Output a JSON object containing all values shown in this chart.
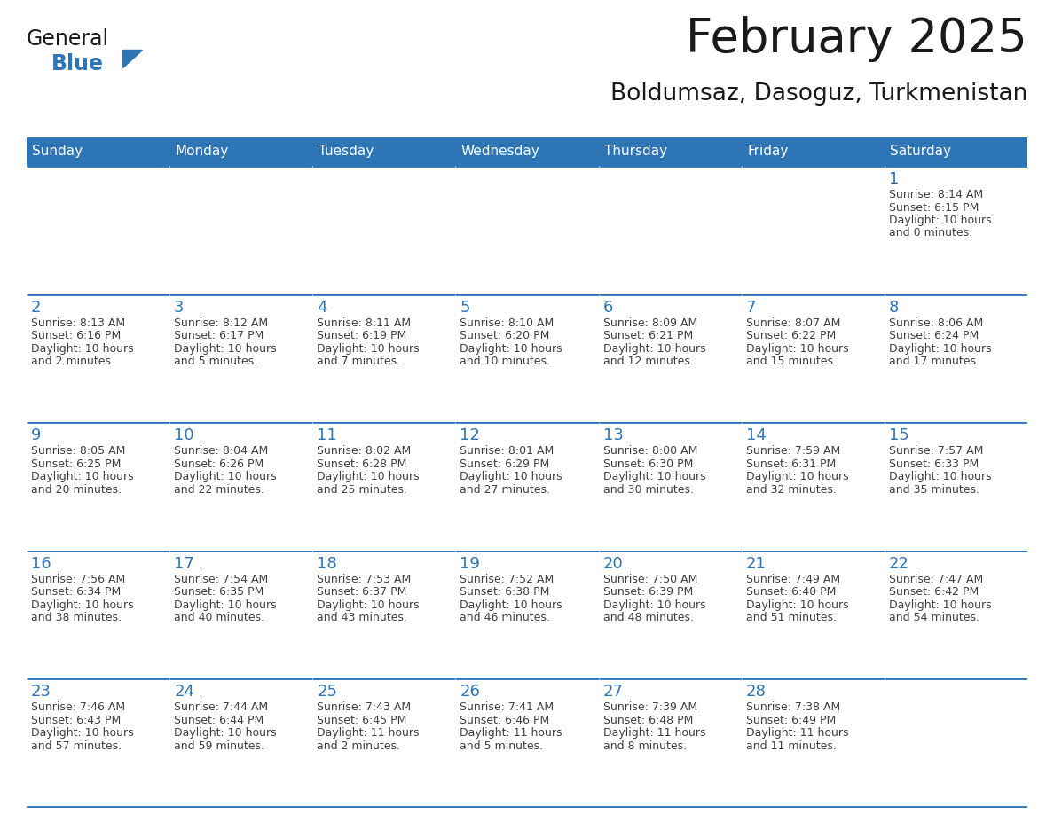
{
  "title": "February 2025",
  "subtitle": "Boldumsaz, Dasoguz, Turkmenistan",
  "header_bg": "#2E75B6",
  "header_text_color": "#FFFFFF",
  "cell_bg": "#FFFFFF",
  "border_color": "#2E75B6",
  "light_border_color": "#BDD7EE",
  "day_headers": [
    "Sunday",
    "Monday",
    "Tuesday",
    "Wednesday",
    "Thursday",
    "Friday",
    "Saturday"
  ],
  "title_color": "#1A1A1A",
  "subtitle_color": "#1A1A1A",
  "logo_general_color": "#1A1A1A",
  "logo_blue_color": "#2E75B6",
  "day_number_color": "#2E75B6",
  "info_text_color": "#404040",
  "weeks": [
    [
      {
        "day": "",
        "info": ""
      },
      {
        "day": "",
        "info": ""
      },
      {
        "day": "",
        "info": ""
      },
      {
        "day": "",
        "info": ""
      },
      {
        "day": "",
        "info": ""
      },
      {
        "day": "",
        "info": ""
      },
      {
        "day": "1",
        "info": "Sunrise: 8:14 AM\nSunset: 6:15 PM\nDaylight: 10 hours\nand 0 minutes."
      }
    ],
    [
      {
        "day": "2",
        "info": "Sunrise: 8:13 AM\nSunset: 6:16 PM\nDaylight: 10 hours\nand 2 minutes."
      },
      {
        "day": "3",
        "info": "Sunrise: 8:12 AM\nSunset: 6:17 PM\nDaylight: 10 hours\nand 5 minutes."
      },
      {
        "day": "4",
        "info": "Sunrise: 8:11 AM\nSunset: 6:19 PM\nDaylight: 10 hours\nand 7 minutes."
      },
      {
        "day": "5",
        "info": "Sunrise: 8:10 AM\nSunset: 6:20 PM\nDaylight: 10 hours\nand 10 minutes."
      },
      {
        "day": "6",
        "info": "Sunrise: 8:09 AM\nSunset: 6:21 PM\nDaylight: 10 hours\nand 12 minutes."
      },
      {
        "day": "7",
        "info": "Sunrise: 8:07 AM\nSunset: 6:22 PM\nDaylight: 10 hours\nand 15 minutes."
      },
      {
        "day": "8",
        "info": "Sunrise: 8:06 AM\nSunset: 6:24 PM\nDaylight: 10 hours\nand 17 minutes."
      }
    ],
    [
      {
        "day": "9",
        "info": "Sunrise: 8:05 AM\nSunset: 6:25 PM\nDaylight: 10 hours\nand 20 minutes."
      },
      {
        "day": "10",
        "info": "Sunrise: 8:04 AM\nSunset: 6:26 PM\nDaylight: 10 hours\nand 22 minutes."
      },
      {
        "day": "11",
        "info": "Sunrise: 8:02 AM\nSunset: 6:28 PM\nDaylight: 10 hours\nand 25 minutes."
      },
      {
        "day": "12",
        "info": "Sunrise: 8:01 AM\nSunset: 6:29 PM\nDaylight: 10 hours\nand 27 minutes."
      },
      {
        "day": "13",
        "info": "Sunrise: 8:00 AM\nSunset: 6:30 PM\nDaylight: 10 hours\nand 30 minutes."
      },
      {
        "day": "14",
        "info": "Sunrise: 7:59 AM\nSunset: 6:31 PM\nDaylight: 10 hours\nand 32 minutes."
      },
      {
        "day": "15",
        "info": "Sunrise: 7:57 AM\nSunset: 6:33 PM\nDaylight: 10 hours\nand 35 minutes."
      }
    ],
    [
      {
        "day": "16",
        "info": "Sunrise: 7:56 AM\nSunset: 6:34 PM\nDaylight: 10 hours\nand 38 minutes."
      },
      {
        "day": "17",
        "info": "Sunrise: 7:54 AM\nSunset: 6:35 PM\nDaylight: 10 hours\nand 40 minutes."
      },
      {
        "day": "18",
        "info": "Sunrise: 7:53 AM\nSunset: 6:37 PM\nDaylight: 10 hours\nand 43 minutes."
      },
      {
        "day": "19",
        "info": "Sunrise: 7:52 AM\nSunset: 6:38 PM\nDaylight: 10 hours\nand 46 minutes."
      },
      {
        "day": "20",
        "info": "Sunrise: 7:50 AM\nSunset: 6:39 PM\nDaylight: 10 hours\nand 48 minutes."
      },
      {
        "day": "21",
        "info": "Sunrise: 7:49 AM\nSunset: 6:40 PM\nDaylight: 10 hours\nand 51 minutes."
      },
      {
        "day": "22",
        "info": "Sunrise: 7:47 AM\nSunset: 6:42 PM\nDaylight: 10 hours\nand 54 minutes."
      }
    ],
    [
      {
        "day": "23",
        "info": "Sunrise: 7:46 AM\nSunset: 6:43 PM\nDaylight: 10 hours\nand 57 minutes."
      },
      {
        "day": "24",
        "info": "Sunrise: 7:44 AM\nSunset: 6:44 PM\nDaylight: 10 hours\nand 59 minutes."
      },
      {
        "day": "25",
        "info": "Sunrise: 7:43 AM\nSunset: 6:45 PM\nDaylight: 11 hours\nand 2 minutes."
      },
      {
        "day": "26",
        "info": "Sunrise: 7:41 AM\nSunset: 6:46 PM\nDaylight: 11 hours\nand 5 minutes."
      },
      {
        "day": "27",
        "info": "Sunrise: 7:39 AM\nSunset: 6:48 PM\nDaylight: 11 hours\nand 8 minutes."
      },
      {
        "day": "28",
        "info": "Sunrise: 7:38 AM\nSunset: 6:49 PM\nDaylight: 11 hours\nand 11 minutes."
      },
      {
        "day": "",
        "info": ""
      }
    ]
  ]
}
